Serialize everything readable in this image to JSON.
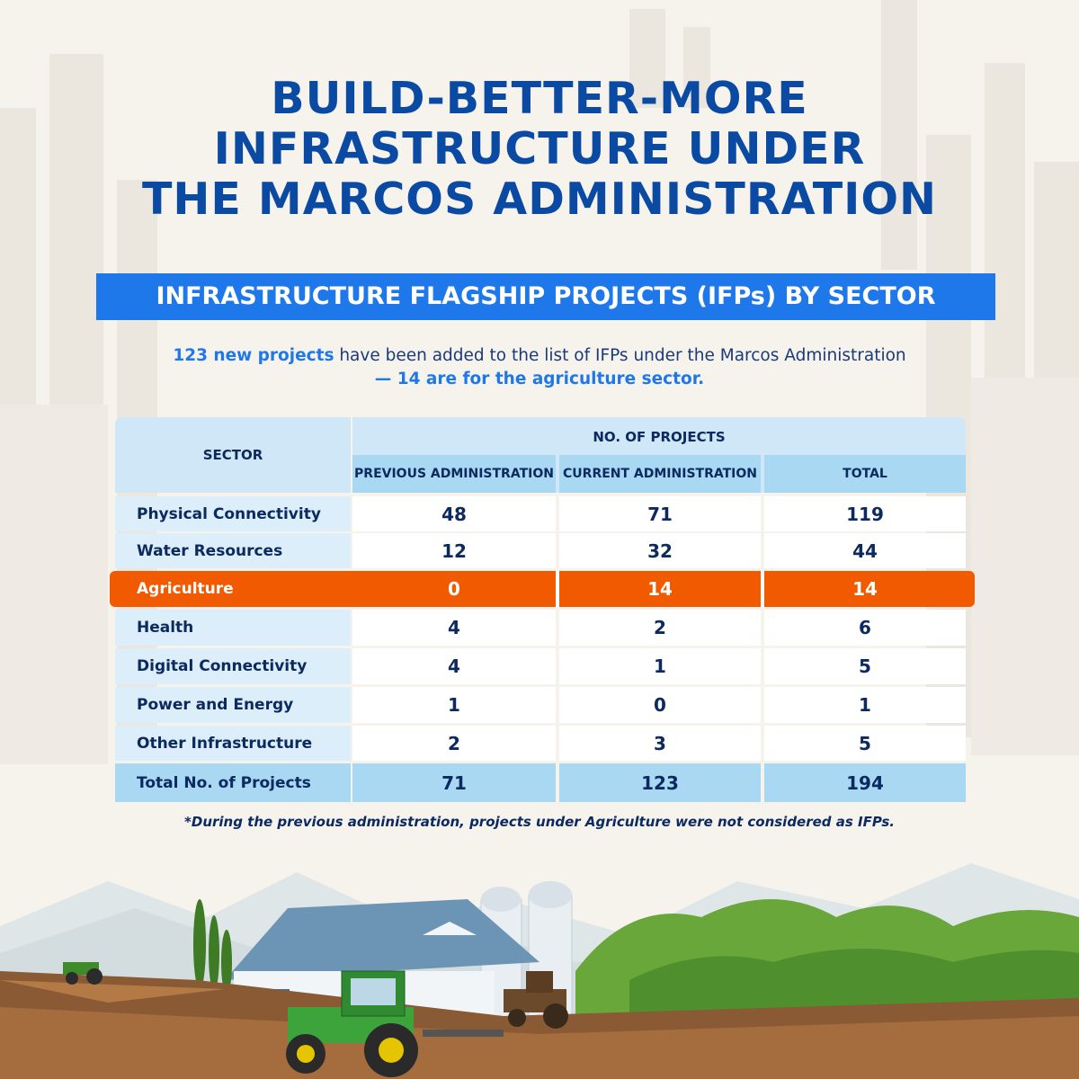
{
  "title_lines": [
    "BUILD-BETTER-MORE",
    "INFRASTRUCTURE UNDER",
    "THE MARCOS ADMINISTRATION"
  ],
  "banner": "INFRASTRUCTURE FLAGSHIP PROJECTS (IFPs) BY SECTOR",
  "intro": {
    "highlight": "123 new projects",
    "text": " have been added to the list of IFPs under the Marcos Administration",
    "line2": "— 14 are for the agriculture sector."
  },
  "table": {
    "sector_header": "SECTOR",
    "group_header": "NO. OF PROJECTS",
    "columns": [
      "PREVIOUS ADMINISTRATION",
      "CURRENT ADMINISTRATION",
      "TOTAL"
    ],
    "rows": [
      {
        "sector": "Physical Connectivity",
        "previous": "48",
        "current": "71",
        "total": "119"
      },
      {
        "sector": "Water Resources",
        "previous": "12",
        "current": "32",
        "total": "44"
      },
      {
        "sector": "Agriculture",
        "previous": "0",
        "current": "14",
        "total": "14"
      },
      {
        "sector": "Health",
        "previous": "4",
        "current": "2",
        "total": "6"
      },
      {
        "sector": "Digital Connectivity",
        "previous": "4",
        "current": "1",
        "total": "5"
      },
      {
        "sector": "Power and Energy",
        "previous": "1",
        "current": "0",
        "total": "1"
      },
      {
        "sector": "Other Infrastructure",
        "previous": "2",
        "current": "3",
        "total": "5"
      }
    ],
    "totals": {
      "sector": "Total No. of Projects",
      "previous": "71",
      "current": "123",
      "total": "194"
    }
  },
  "footnote": "*During the previous administration, projects under Agriculture were not considered as IFPs.",
  "colors": {
    "title": "#0a4aa3",
    "banner": "#1f78e9",
    "highlight_row": "#f25a00",
    "header_bg": "#cfe7f7",
    "subheader_bg": "#a9d8f3"
  }
}
